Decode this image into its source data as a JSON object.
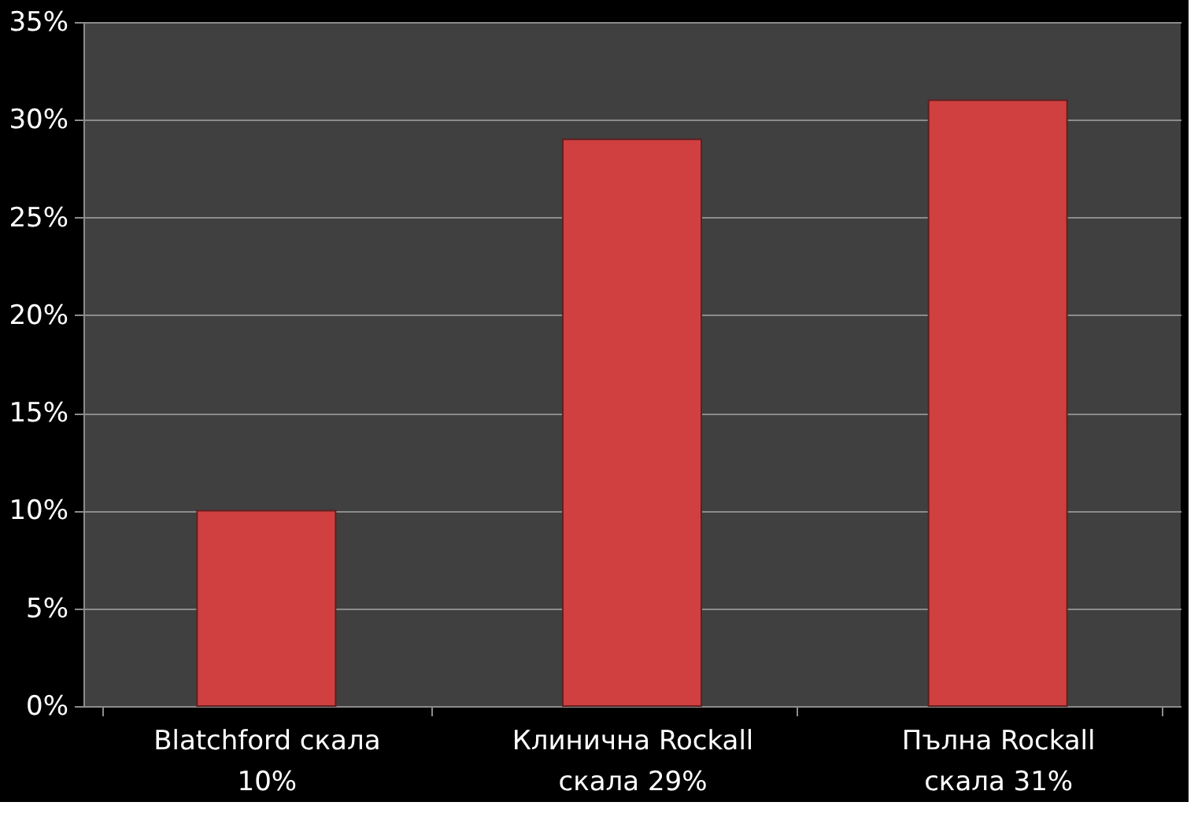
{
  "chart_data": {
    "type": "bar",
    "categories": [
      "Blatchford скала\n10%",
      "Клинична Rockall\nскала 29%",
      "Пълна Rockall\nскала 31%"
    ],
    "values": [
      10,
      29,
      31
    ],
    "color": "#d04040",
    "ylim": [
      0,
      35
    ],
    "yticks": [
      {
        "value": 0,
        "label": "0%"
      },
      {
        "value": 5,
        "label": "5%"
      },
      {
        "value": 10,
        "label": "10%"
      },
      {
        "value": 15,
        "label": "15%"
      },
      {
        "value": 20,
        "label": "20%"
      },
      {
        "value": 25,
        "label": "25%"
      },
      {
        "value": 30,
        "label": "30%"
      },
      {
        "value": 35,
        "label": "35%"
      }
    ],
    "grid": "y"
  }
}
